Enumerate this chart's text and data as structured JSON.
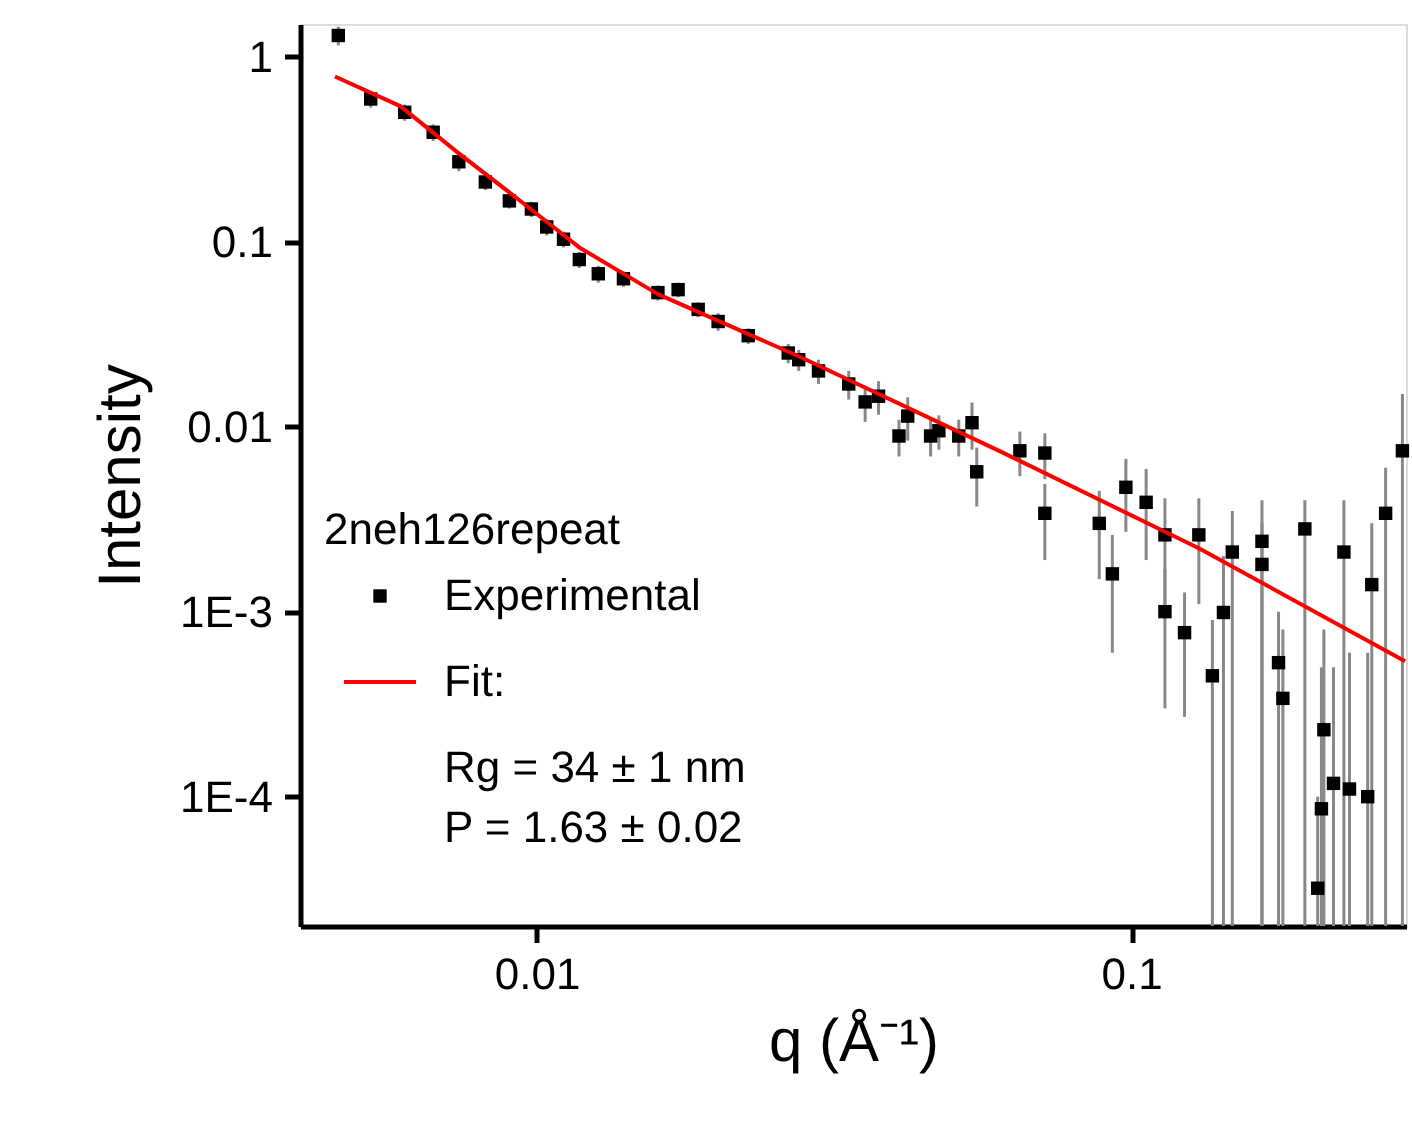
{
  "chart_data": {
    "type": "scatter",
    "xlabel": "q (Å⁻¹)",
    "ylabel": "Intensity",
    "legend_title": "2neh126repeat",
    "log": "xy",
    "grid": false,
    "legend": "bottom left",
    "xlim": [
      0.004,
      0.29
    ],
    "ylim": [
      2e-05,
      1.5
    ],
    "xticks": [
      0.01,
      0.1
    ],
    "yticks": [
      1,
      0.1,
      0.01,
      {
        "value": 0.001,
        "label": "1E-3"
      },
      {
        "value": 0.0001,
        "label": "1E-4"
      }
    ],
    "annotations": [
      "Rg = 34 ± 1 nm",
      "P = 1.63 ± 0.02"
    ],
    "series": [
      {
        "name": "Experimental",
        "marker": "square",
        "color": "#000000",
        "x": [
          0.00464,
          0.00526,
          0.006,
          0.0067,
          0.0074,
          0.0082,
          0.009,
          0.0098,
          0.0104,
          0.0111,
          0.0118,
          0.0127,
          0.014,
          0.016,
          0.0173,
          0.0187,
          0.0202,
          0.0227,
          0.0265,
          0.0276,
          0.0298,
          0.0335,
          0.0357,
          0.0376,
          0.0407,
          0.0421,
          0.046,
          0.0475,
          0.0513,
          0.054,
          0.055,
          0.065,
          0.0716,
          0.0716,
          0.0884,
          0.093,
          0.098,
          0.106,
          0.114,
          0.114,
          0.123,
          0.13,
          0.137,
          0.143,
          0.148,
          0.166,
          0.166,
          0.177,
          0.18,
          0.196,
          0.206,
          0.209,
          0.211,
          0.219,
          0.228,
          0.233,
          0.25,
          0.254,
          0.268,
          0.286
        ],
        "values": [
          1.3,
          0.59,
          0.5,
          0.39,
          0.27,
          0.21,
          0.166,
          0.15,
          0.12,
          0.103,
          0.08,
          0.067,
          0.063,
          0.053,
          0.055,
          0.043,
          0.037,
          0.031,
          0.025,
          0.023,
          0.02,
          0.017,
          0.0136,
          0.0146,
          0.0089,
          0.0114,
          0.0089,
          0.0095,
          0.0089,
          0.0105,
          0.0057,
          0.0074,
          0.0072,
          0.0034,
          0.003,
          0.0016,
          0.0047,
          0.0039,
          0.001,
          0.0026,
          0.00077,
          0.0026,
          0.00045,
          0.00099,
          0.0021,
          0.0018,
          0.0024,
          0.00053,
          0.00034,
          0.0028,
          3.2e-05,
          8.6e-05,
          0.00023,
          0.000118,
          0.0021,
          0.00011,
          0.0001,
          0.0014,
          0.0034,
          0.0074
        ],
        "errors": [
          0.15,
          0.06,
          0.05,
          0.04,
          0.03,
          0.02,
          0.015,
          0.014,
          0.012,
          0.01,
          0.008,
          0.007,
          0.006,
          0.005,
          0.005,
          0.004,
          0.004,
          0.003,
          0.003,
          0.003,
          0.003,
          0.003,
          0.003,
          0.003,
          0.002,
          0.003,
          0.002,
          0.002,
          0.002,
          0.003,
          0.002,
          0.002,
          0.002,
          0.0015,
          0.0015,
          0.001,
          0.002,
          0.002,
          0.0007,
          0.0015,
          0.0005,
          0.0015,
          [
            2e-05,
            0.0009
          ],
          [
            2e-05,
            0.002
          ],
          [
            2e-05,
            0.0035
          ],
          [
            2e-05,
            0.003
          ],
          [
            2e-05,
            0.004
          ],
          [
            2e-05,
            0.001
          ],
          [
            2e-05,
            0.0008
          ],
          [
            2e-05,
            0.004
          ],
          [
            2e-05,
            0.0001
          ],
          [
            2e-05,
            0.0005
          ],
          [
            2e-05,
            0.0008
          ],
          [
            2e-05,
            0.0005
          ],
          [
            2e-05,
            0.004
          ],
          [
            2e-05,
            0.0006
          ],
          [
            2e-05,
            0.0006
          ],
          [
            2e-05,
            0.003
          ],
          [
            2e-05,
            0.006
          ],
          [
            2e-05,
            0.015
          ]
        ]
      },
      {
        "name": "Fit:",
        "type": "line",
        "line_style": "solid",
        "color": "#ff0000",
        "x": [
          0.00458,
          0.0059,
          0.0074,
          0.0093,
          0.0118,
          0.016,
          0.0276,
          0.06,
          0.13,
          0.289
        ],
        "values": [
          0.78,
          0.54,
          0.3,
          0.17,
          0.093,
          0.052,
          0.024,
          0.0074,
          0.0022,
          0.00054
        ]
      }
    ]
  }
}
